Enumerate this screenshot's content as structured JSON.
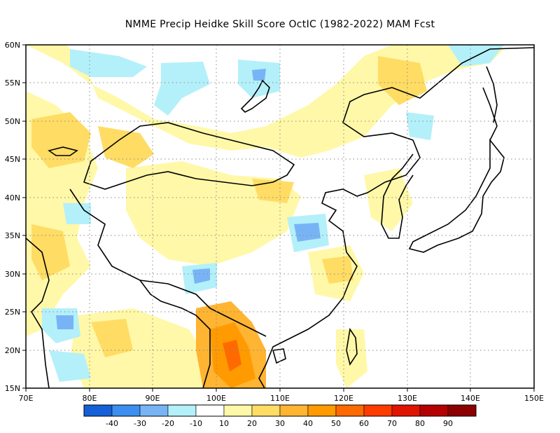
{
  "title": "NMME Precip Heidke Skill Score OctIC (1982-2022) MAM Fcst",
  "map": {
    "lon_labels": [
      "70E",
      "80E",
      "90E",
      "100E",
      "110E",
      "120E",
      "130E",
      "140E",
      "150E"
    ],
    "lat_labels": [
      "15N",
      "20N",
      "25N",
      "30N",
      "35N",
      "40N",
      "45N",
      "50N",
      "55N",
      "60N"
    ],
    "gridlines": "dotted"
  },
  "colorbar": {
    "colors": [
      "#1560d8",
      "#3c8ef0",
      "#78b4f5",
      "#b4f0fa",
      "#ffffff",
      "#fff8a8",
      "#ffdc64",
      "#ffb432",
      "#ff9a00",
      "#ff6a00",
      "#ff3c00",
      "#e01400",
      "#b40000",
      "#8c0000"
    ],
    "labels": [
      "-40",
      "-30",
      "-20",
      "-10",
      "10",
      "20",
      "30",
      "40",
      "50",
      "60",
      "70",
      "80",
      "90"
    ]
  }
}
